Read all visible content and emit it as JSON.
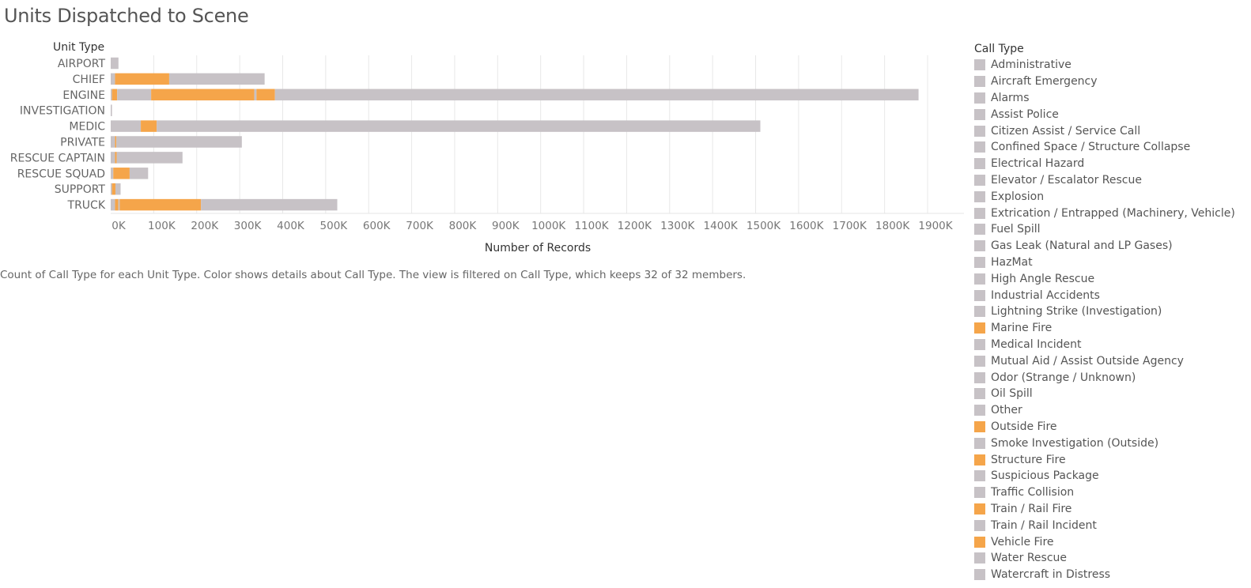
{
  "title": "Units Dispatched to Scene",
  "caption": "Count of Call Type for each Unit Type.  Color shows details about Call Type. The view is filtered on Call Type, which keeps 32 of 32 members.",
  "colors": {
    "highlight": "#f5a54a",
    "other": "#c7c2c6",
    "grid": "#e8e8e8"
  },
  "chart_data": {
    "type": "bar",
    "orientation": "horizontal",
    "stacked": true,
    "title": "Units Dispatched to Scene",
    "ylabel": "Unit Type",
    "xlabel": "Number of Records",
    "xlim": [
      0,
      1900000
    ],
    "x_ticks": [
      "0K",
      "100K",
      "200K",
      "300K",
      "400K",
      "500K",
      "600K",
      "700K",
      "800K",
      "900K",
      "1000K",
      "1100K",
      "1200K",
      "1300K",
      "1400K",
      "1500K",
      "1600K",
      "1700K",
      "1800K",
      "1900K"
    ],
    "grid": true,
    "categories": [
      "AIRPORT",
      "CHIEF",
      "ENGINE",
      "INVESTIGATION",
      "MEDIC",
      "PRIVATE",
      "RESCUE CAPTAIN",
      "RESCUE SQUAD",
      "SUPPORT",
      "TRUCK"
    ],
    "segments": [
      [
        {
          "color": "other",
          "value": 18000
        }
      ],
      [
        {
          "color": "other",
          "value": 10000
        },
        {
          "color": "highlight",
          "value": 126000
        },
        {
          "color": "other",
          "value": 222000
        }
      ],
      [
        {
          "color": "other",
          "value": 3000
        },
        {
          "color": "highlight",
          "value": 12000
        },
        {
          "color": "other",
          "value": 79000
        },
        {
          "color": "highlight",
          "value": 240000
        },
        {
          "color": "other",
          "value": 5000
        },
        {
          "color": "highlight",
          "value": 43000
        },
        {
          "color": "other",
          "value": 1497000
        }
      ],
      [
        {
          "color": "other",
          "value": 3000
        }
      ],
      [
        {
          "color": "other",
          "value": 70000
        },
        {
          "color": "highlight",
          "value": 37000
        },
        {
          "color": "other",
          "value": 1404000
        }
      ],
      [
        {
          "color": "other",
          "value": 10000
        },
        {
          "color": "highlight",
          "value": 3000
        },
        {
          "color": "other",
          "value": 292000
        }
      ],
      [
        {
          "color": "other",
          "value": 10000
        },
        {
          "color": "highlight",
          "value": 4000
        },
        {
          "color": "other",
          "value": 153000
        }
      ],
      [
        {
          "color": "other",
          "value": 6000
        },
        {
          "color": "highlight",
          "value": 38000
        },
        {
          "color": "other",
          "value": 43000
        }
      ],
      [
        {
          "color": "other",
          "value": 3000
        },
        {
          "color": "highlight",
          "value": 8000
        },
        {
          "color": "other",
          "value": 12000
        }
      ],
      [
        {
          "color": "other",
          "value": 10000
        },
        {
          "color": "highlight",
          "value": 8000
        },
        {
          "color": "other",
          "value": 3000
        },
        {
          "color": "highlight",
          "value": 189000
        },
        {
          "color": "other",
          "value": 317000
        }
      ]
    ],
    "legend": {
      "title": "Call Type",
      "position": "right",
      "items": [
        {
          "label": "Administrative",
          "color": "other"
        },
        {
          "label": "Aircraft Emergency",
          "color": "other"
        },
        {
          "label": "Alarms",
          "color": "other"
        },
        {
          "label": "Assist Police",
          "color": "other"
        },
        {
          "label": "Citizen Assist / Service Call",
          "color": "other"
        },
        {
          "label": "Confined Space / Structure Collapse",
          "color": "other"
        },
        {
          "label": "Electrical Hazard",
          "color": "other"
        },
        {
          "label": "Elevator / Escalator Rescue",
          "color": "other"
        },
        {
          "label": "Explosion",
          "color": "other"
        },
        {
          "label": "Extrication / Entrapped (Machinery, Vehicle)",
          "color": "other"
        },
        {
          "label": "Fuel Spill",
          "color": "other"
        },
        {
          "label": "Gas Leak (Natural and LP Gases)",
          "color": "other"
        },
        {
          "label": "HazMat",
          "color": "other"
        },
        {
          "label": "High Angle Rescue",
          "color": "other"
        },
        {
          "label": "Industrial Accidents",
          "color": "other"
        },
        {
          "label": "Lightning Strike (Investigation)",
          "color": "other"
        },
        {
          "label": "Marine Fire",
          "color": "highlight"
        },
        {
          "label": "Medical Incident",
          "color": "other"
        },
        {
          "label": "Mutual Aid / Assist Outside Agency",
          "color": "other"
        },
        {
          "label": "Odor (Strange / Unknown)",
          "color": "other"
        },
        {
          "label": "Oil Spill",
          "color": "other"
        },
        {
          "label": "Other",
          "color": "other"
        },
        {
          "label": "Outside Fire",
          "color": "highlight"
        },
        {
          "label": "Smoke Investigation (Outside)",
          "color": "other"
        },
        {
          "label": "Structure Fire",
          "color": "highlight"
        },
        {
          "label": "Suspicious Package",
          "color": "other"
        },
        {
          "label": "Traffic Collision",
          "color": "other"
        },
        {
          "label": "Train / Rail Fire",
          "color": "highlight"
        },
        {
          "label": "Train / Rail Incident",
          "color": "other"
        },
        {
          "label": "Vehicle Fire",
          "color": "highlight"
        },
        {
          "label": "Water Rescue",
          "color": "other"
        },
        {
          "label": "Watercraft in Distress",
          "color": "other"
        }
      ]
    }
  }
}
